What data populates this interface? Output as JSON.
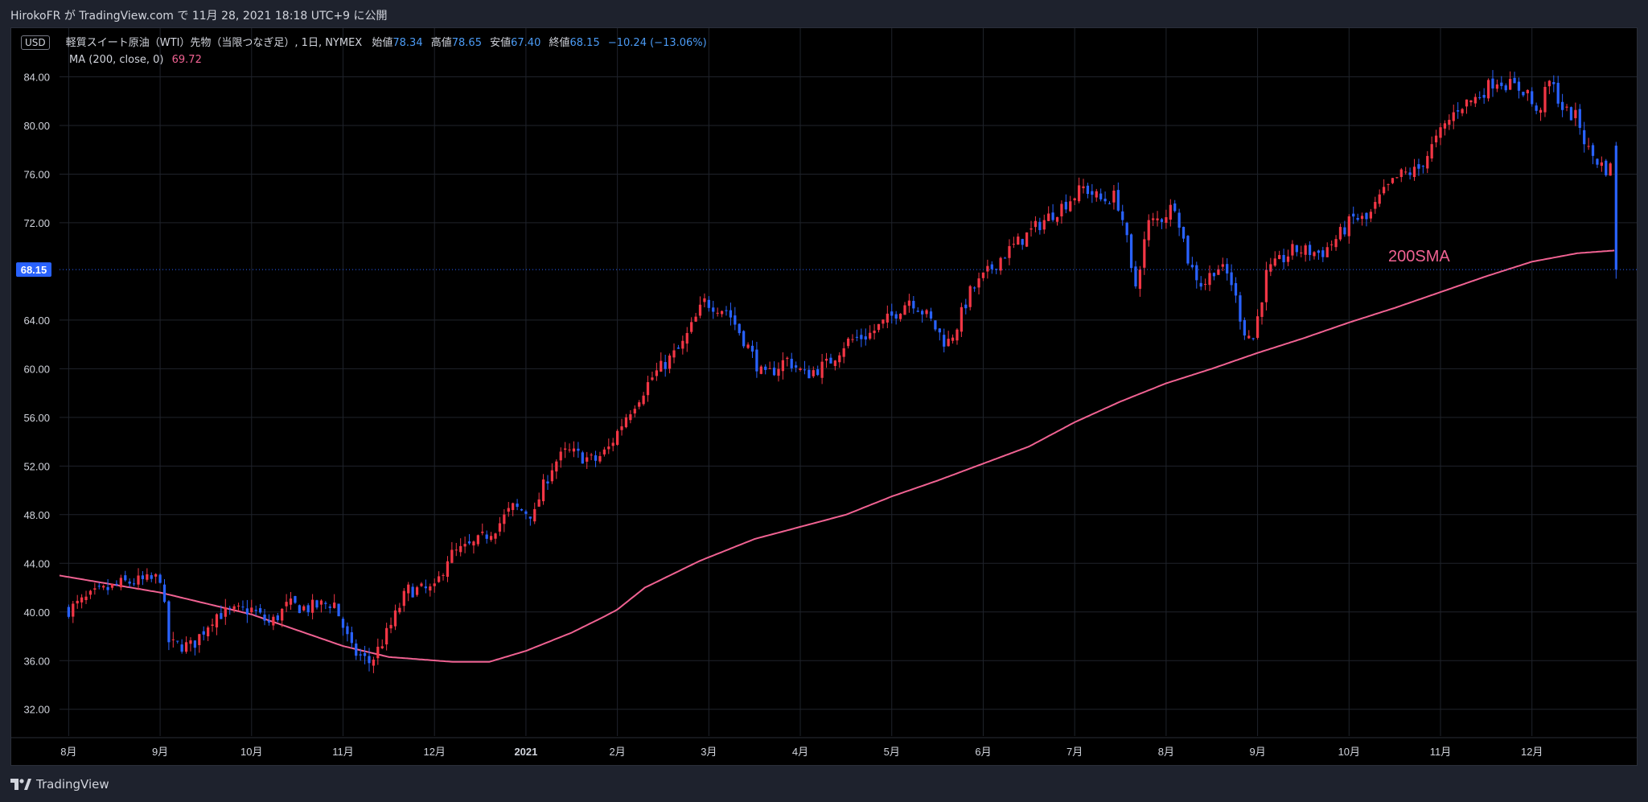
{
  "header": {
    "caption": "HirokoFR が TradingView.com で 11月 28, 2021 18:18 UTC+9 に公開"
  },
  "legend": {
    "currency": "USD",
    "title": "軽質スイート原油（WTI）先物（当限つなぎ足）, 1日, NYMEX",
    "open_label": "始値",
    "open_value": "78.34",
    "high_label": "高値",
    "high_value": "78.65",
    "low_label": "安値",
    "low_value": "67.40",
    "close_label": "終値",
    "close_value": "68.15",
    "change": "−10.24 (−13.06%)",
    "ma_label": "MA (200, close, 0)",
    "ma_value": "69.72"
  },
  "footer": {
    "brand": "TradingView",
    "logo_icon": "tradingview-logo-icon"
  },
  "colors": {
    "background": "#000000",
    "frame": "#1e222d",
    "grid": "#1f232b",
    "up": "#f23645",
    "down": "#2962ff",
    "ma": "#f06292",
    "price_tag": "#2962ff"
  },
  "chart_data": {
    "type": "candlestick",
    "symbol": "軽質スイート原油（WTI）先物（当限つなぎ足）",
    "interval": "1日",
    "exchange": "NYMEX",
    "x_tick_labels": [
      "8月",
      "9月",
      "10月",
      "11月",
      "12月",
      "2021",
      "2月",
      "3月",
      "4月",
      "5月",
      "6月",
      "7月",
      "8月",
      "9月",
      "10月",
      "11月",
      "12月"
    ],
    "y_ticks": [
      32,
      36,
      40,
      44,
      48,
      52,
      56,
      60,
      64,
      68.15,
      72,
      76,
      80,
      84
    ],
    "y_tick_labels": [
      "32.00",
      "36.00",
      "40.00",
      "44.00",
      "48.00",
      "52.00",
      "56.00",
      "60.00",
      "64.00",
      "68.15",
      "72.00",
      "76.00",
      "80.00",
      "84.00"
    ],
    "ylim": [
      29.8,
      88.0
    ],
    "xlim_months": [
      -0.1,
      16.75
    ],
    "current_price": 68.15,
    "current_price_label": "68.15",
    "annotation": "200SMA",
    "grid": true,
    "series": [
      {
        "type": "candles",
        "key_points": [
          [
            0.0,
            40.2
          ],
          [
            0.3,
            41.5
          ],
          [
            0.6,
            42.4
          ],
          [
            0.9,
            42.6
          ],
          [
            1.0,
            42.9
          ],
          [
            1.1,
            37.3
          ],
          [
            1.35,
            37.2
          ],
          [
            1.6,
            39.8
          ],
          [
            2.0,
            40.2
          ],
          [
            2.2,
            39.0
          ],
          [
            2.4,
            40.6
          ],
          [
            2.6,
            40.3
          ],
          [
            2.9,
            40.8
          ],
          [
            3.1,
            36.8
          ],
          [
            3.3,
            35.8
          ],
          [
            3.5,
            38.5
          ],
          [
            3.7,
            41.8
          ],
          [
            4.0,
            41.8
          ],
          [
            4.15,
            44.6
          ],
          [
            4.45,
            45.6
          ],
          [
            4.7,
            47.2
          ],
          [
            4.85,
            48.6
          ],
          [
            5.1,
            48.0
          ],
          [
            5.15,
            49.6
          ],
          [
            5.3,
            52.2
          ],
          [
            5.45,
            53.2
          ],
          [
            5.75,
            52.4
          ],
          [
            5.9,
            53.4
          ],
          [
            6.1,
            56.2
          ],
          [
            6.4,
            59.5
          ],
          [
            6.7,
            61.8
          ],
          [
            6.95,
            65.5
          ],
          [
            7.2,
            64.8
          ],
          [
            7.45,
            61.5
          ],
          [
            7.6,
            59.2
          ],
          [
            7.85,
            60.8
          ],
          [
            8.05,
            59.5
          ],
          [
            8.3,
            60.4
          ],
          [
            8.5,
            62.2
          ],
          [
            8.75,
            62.8
          ],
          [
            9.0,
            64.3
          ],
          [
            9.2,
            65.8
          ],
          [
            9.4,
            64.2
          ],
          [
            9.6,
            62.0
          ],
          [
            9.7,
            63.3
          ],
          [
            9.85,
            66.2
          ],
          [
            10.2,
            69.2
          ],
          [
            10.6,
            71.8
          ],
          [
            10.85,
            73.3
          ],
          [
            11.1,
            74.9
          ],
          [
            11.3,
            73.8
          ],
          [
            11.45,
            74.2
          ],
          [
            11.55,
            71.6
          ],
          [
            11.65,
            66.2
          ],
          [
            11.8,
            71.9
          ],
          [
            11.95,
            72.4
          ],
          [
            12.1,
            73.6
          ],
          [
            12.25,
            68.6
          ],
          [
            12.4,
            66.8
          ],
          [
            12.55,
            68.5
          ],
          [
            12.7,
            67.5
          ],
          [
            12.85,
            63.2
          ],
          [
            12.95,
            62.4
          ],
          [
            13.1,
            67.9
          ],
          [
            13.4,
            69.8
          ],
          [
            13.7,
            69.5
          ],
          [
            13.85,
            70.6
          ],
          [
            14.05,
            72.4
          ],
          [
            14.2,
            72.2
          ],
          [
            14.35,
            74.2
          ],
          [
            14.55,
            75.9
          ],
          [
            14.75,
            76.3
          ],
          [
            15.0,
            79.4
          ],
          [
            15.2,
            81.6
          ],
          [
            15.4,
            82.3
          ],
          [
            15.6,
            83.8
          ],
          [
            15.8,
            83.2
          ],
          [
            15.95,
            82.8
          ],
          [
            16.05,
            80.8
          ],
          [
            16.2,
            83.7
          ],
          [
            16.35,
            81.2
          ],
          [
            16.5,
            80.6
          ],
          [
            16.6,
            78.1
          ],
          [
            16.75,
            76.8
          ],
          [
            16.85,
            76.2
          ],
          [
            16.9,
            78.3
          ],
          [
            16.92,
            68.15
          ]
        ]
      },
      {
        "name": "MA (200, close, 0)",
        "type": "line",
        "key_points": [
          [
            -0.1,
            43.0
          ],
          [
            1.0,
            41.6
          ],
          [
            2.0,
            39.8
          ],
          [
            3.0,
            37.2
          ],
          [
            3.5,
            36.3
          ],
          [
            4.2,
            35.9
          ],
          [
            4.6,
            35.9
          ],
          [
            5.0,
            36.8
          ],
          [
            5.5,
            38.3
          ],
          [
            5.85,
            39.6
          ],
          [
            6.0,
            40.2
          ],
          [
            6.3,
            42.0
          ],
          [
            6.9,
            44.2
          ],
          [
            7.5,
            46.0
          ],
          [
            8.0,
            47.0
          ],
          [
            8.5,
            48.0
          ],
          [
            9.0,
            49.5
          ],
          [
            9.5,
            50.8
          ],
          [
            10.0,
            52.2
          ],
          [
            10.5,
            53.6
          ],
          [
            11.0,
            55.6
          ],
          [
            11.5,
            57.3
          ],
          [
            12.0,
            58.8
          ],
          [
            12.5,
            60.0
          ],
          [
            13.0,
            61.3
          ],
          [
            13.5,
            62.5
          ],
          [
            14.0,
            63.8
          ],
          [
            14.5,
            65.0
          ],
          [
            15.0,
            66.3
          ],
          [
            15.5,
            67.6
          ],
          [
            16.0,
            68.8
          ],
          [
            16.5,
            69.5
          ],
          [
            16.9,
            69.72
          ]
        ]
      }
    ]
  }
}
